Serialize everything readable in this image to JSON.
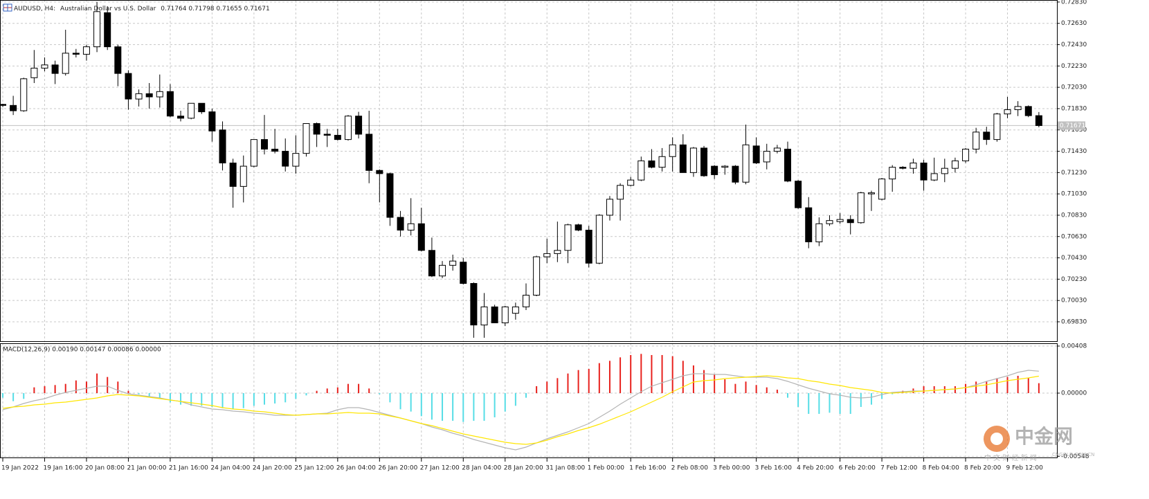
{
  "chart_data": [
    {
      "type": "candlestick",
      "title": "AUDUSD, H4:",
      "subtitle": "Australian Dollar vs U.S. Dollar",
      "categories": [
        "19 Jan 2022",
        null,
        null,
        null,
        "19 Jan 16:00",
        null,
        null,
        null,
        "20 Jan 08:00",
        null,
        null,
        null,
        "21 Jan 00:00",
        null,
        null,
        null,
        "21 Jan 16:00",
        null,
        null,
        null,
        "24 Jan 04:00",
        null,
        null,
        null,
        "24 Jan 20:00",
        null,
        null,
        null,
        "25 Jan 12:00",
        null,
        null,
        null,
        "26 Jan 04:00",
        null,
        null,
        null,
        "26 Jan 20:00",
        null,
        null,
        null,
        "27 Jan 12:00",
        null,
        null,
        null,
        "28 Jan 04:00",
        null,
        null,
        null,
        "28 Jan 20:00",
        null,
        null,
        null,
        "31 Jan 08:00",
        null,
        null,
        null,
        "1 Feb 00:00",
        null,
        null,
        null,
        "1 Feb 16:00",
        null,
        null,
        null,
        "2 Feb 08:00",
        null,
        null,
        null,
        "3 Feb 00:00",
        null,
        null,
        null,
        "3 Feb 16:00",
        null,
        null,
        null,
        "4 Feb 20:00",
        null,
        null,
        null,
        "6 Feb 20:00",
        null,
        null,
        null,
        "7 Feb 12:00",
        null,
        null,
        null,
        "8 Feb 04:00",
        null,
        null,
        null,
        "8 Feb 20:00",
        null,
        null,
        null,
        "9 Feb 12:00",
        null,
        null,
        null
      ],
      "open": [
        0.7187,
        0.7186,
        0.7181,
        0.7212,
        0.7221,
        0.7224,
        0.7216,
        0.7235,
        0.7234,
        0.7241,
        0.7273,
        0.7241,
        0.7216,
        0.7192,
        0.7197,
        0.7194,
        0.7199,
        0.7176,
        0.7174,
        0.7188,
        0.718,
        0.7163,
        0.7132,
        0.711,
        0.7129,
        0.7154,
        0.7145,
        0.7143,
        0.7129,
        0.7141,
        0.7169,
        0.7159,
        0.7158,
        0.7154,
        0.7176,
        0.7159,
        0.7125,
        0.7122,
        0.7081,
        0.7069,
        0.7075,
        0.705,
        0.7026,
        0.7036,
        0.7039,
        0.7019,
        0.698,
        0.6997,
        0.6982,
        0.6991,
        0.6997,
        0.7008,
        0.7044,
        0.7047,
        0.705,
        0.7074,
        0.7069,
        0.7038,
        0.7083,
        0.7098,
        0.7111,
        0.7116,
        0.7134,
        0.7128,
        0.7138,
        0.7149,
        0.7123,
        0.7146,
        0.7129,
        0.7128,
        0.7129,
        0.7114,
        0.7148,
        0.7133,
        0.7143,
        0.7145,
        0.7115,
        0.709,
        0.7058,
        0.7075,
        0.7077,
        0.7079,
        0.7076,
        0.7103,
        0.7098,
        0.7117,
        0.7128,
        0.7127,
        0.7132,
        0.7116,
        0.7122,
        0.7127,
        0.7134,
        0.7145,
        0.7161,
        0.7154,
        0.7178,
        0.7182,
        0.7185,
        0.71764
      ],
      "high": [
        0.71875,
        0.7195,
        0.7212,
        0.7238,
        0.7231,
        0.7228,
        0.7257,
        0.7239,
        0.7243,
        0.7283,
        0.7279,
        0.7243,
        0.7219,
        0.7201,
        0.7207,
        0.7215,
        0.7206,
        0.7181,
        0.7188,
        0.7188,
        0.7183,
        0.7171,
        0.7136,
        0.7139,
        0.7154,
        0.7177,
        0.7164,
        0.7155,
        0.7158,
        0.7169,
        0.717,
        0.7164,
        0.7164,
        0.7177,
        0.718,
        0.7181,
        0.7126,
        0.7123,
        0.7087,
        0.7099,
        0.709,
        0.7062,
        0.704,
        0.7046,
        0.7043,
        0.702,
        0.701,
        0.6999,
        0.6998,
        0.7001,
        0.7019,
        0.7045,
        0.7061,
        0.7077,
        0.7075,
        0.7075,
        0.7073,
        0.7084,
        0.7101,
        0.7113,
        0.7119,
        0.7138,
        0.7145,
        0.7146,
        0.7156,
        0.7159,
        0.7147,
        0.7148,
        0.713,
        0.713,
        0.713,
        0.7168,
        0.7156,
        0.715,
        0.7149,
        0.7152,
        0.7116,
        0.71,
        0.7081,
        0.7083,
        0.7085,
        0.7083,
        0.7105,
        0.7106,
        0.7118,
        0.713,
        0.7129,
        0.7136,
        0.7135,
        0.7137,
        0.7136,
        0.7137,
        0.7146,
        0.7165,
        0.7166,
        0.7179,
        0.7194,
        0.719,
        0.7186,
        0.71798
      ],
      "low": [
        0.71845,
        0.7177,
        0.718,
        0.7207,
        0.7218,
        0.7206,
        0.7214,
        0.7231,
        0.7228,
        0.7236,
        0.7238,
        0.7204,
        0.7182,
        0.7185,
        0.7183,
        0.7184,
        0.7175,
        0.7171,
        0.7173,
        0.7178,
        0.7152,
        0.7125,
        0.709,
        0.7095,
        0.7128,
        0.714,
        0.7141,
        0.7124,
        0.7122,
        0.7138,
        0.7147,
        0.7147,
        0.7153,
        0.7153,
        0.7155,
        0.7113,
        0.7095,
        0.7073,
        0.7063,
        0.7064,
        0.7049,
        0.7025,
        0.7024,
        0.7031,
        0.7018,
        0.6968,
        0.6968,
        0.6982,
        0.6979,
        0.6985,
        0.6994,
        0.7007,
        0.7038,
        0.7039,
        0.7038,
        0.7068,
        0.7034,
        0.7037,
        0.7078,
        0.7078,
        0.711,
        0.7115,
        0.7127,
        0.7124,
        0.7124,
        0.7123,
        0.7119,
        0.7119,
        0.7117,
        0.7121,
        0.7112,
        0.7112,
        0.7131,
        0.7126,
        0.7141,
        0.7114,
        0.7089,
        0.7052,
        0.7054,
        0.7073,
        0.7075,
        0.7065,
        0.7075,
        0.7087,
        0.7097,
        0.7105,
        0.7126,
        0.7122,
        0.7106,
        0.7115,
        0.7114,
        0.7123,
        0.7132,
        0.7141,
        0.7149,
        0.7152,
        0.7174,
        0.7176,
        0.7175,
        0.71655
      ],
      "close": [
        0.7186,
        0.7181,
        0.7211,
        0.7221,
        0.7224,
        0.7216,
        0.7235,
        0.7234,
        0.7241,
        0.7274,
        0.7241,
        0.7216,
        0.7192,
        0.7197,
        0.7194,
        0.7199,
        0.7176,
        0.7174,
        0.7188,
        0.718,
        0.7162,
        0.7132,
        0.711,
        0.7129,
        0.7154,
        0.7145,
        0.7143,
        0.7129,
        0.7141,
        0.7169,
        0.7159,
        0.7158,
        0.7154,
        0.7176,
        0.7159,
        0.7125,
        0.7122,
        0.7081,
        0.7069,
        0.7075,
        0.705,
        0.7026,
        0.7036,
        0.704,
        0.7019,
        0.698,
        0.6997,
        0.6982,
        0.6997,
        0.6997,
        0.7008,
        0.7044,
        0.7047,
        0.705,
        0.7074,
        0.7069,
        0.7038,
        0.7083,
        0.7098,
        0.7111,
        0.7116,
        0.7134,
        0.7128,
        0.7138,
        0.7149,
        0.7123,
        0.7146,
        0.712,
        0.7121,
        0.7129,
        0.7114,
        0.7149,
        0.7132,
        0.7143,
        0.7146,
        0.7115,
        0.709,
        0.7058,
        0.7075,
        0.7078,
        0.7079,
        0.7076,
        0.7104,
        0.7104,
        0.7117,
        0.7128,
        0.7127,
        0.7132,
        0.7116,
        0.7122,
        0.7127,
        0.7134,
        0.7145,
        0.7161,
        0.7154,
        0.7178,
        0.7182,
        0.7185,
        0.71764,
        0.71671
      ],
      "up_color": "#ffffff",
      "down_color": "#000000",
      "outline_color": "#000000",
      "ylim": [
        0.69648,
        0.72849
      ],
      "yticks": [
        {
          "value": 0.7283,
          "label": "0.72830"
        },
        {
          "value": 0.7263,
          "label": "0.72630"
        },
        {
          "value": 0.7243,
          "label": "0.72430"
        },
        {
          "value": 0.7223,
          "label": "0.72230"
        },
        {
          "value": 0.7203,
          "label": "0.72030"
        },
        {
          "value": 0.7183,
          "label": "0.71830"
        },
        {
          "value": 0.7163,
          "label": "0.71630"
        },
        {
          "value": 0.7143,
          "label": "0.71430"
        },
        {
          "value": 0.7123,
          "label": "0.71230"
        },
        {
          "value": 0.7103,
          "label": "0.71030"
        },
        {
          "value": 0.7083,
          "label": "0.70830"
        },
        {
          "value": 0.7063,
          "label": "0.70630"
        },
        {
          "value": 0.7043,
          "label": "0.70430"
        },
        {
          "value": 0.7023,
          "label": "0.70230"
        },
        {
          "value": 0.7003,
          "label": "0.70030"
        },
        {
          "value": 0.6983,
          "label": "0.69830"
        }
      ],
      "last_price": 0.71671,
      "grid": true
    },
    {
      "type": "macd",
      "title": "MACD(12,26,9) 0.00190 0.00147 0.00086 0.00000",
      "histogram": {
        "positive_color": "#e8201c",
        "negative_color": "#55dde6",
        "values": [
          -0.0004,
          -0.0007,
          -0.0005,
          0.0005,
          0.0006,
          0.0007,
          0.0008,
          0.0011,
          0.001,
          0.0017,
          0.0014,
          0.001,
          0.0002,
          -0.0001,
          -0.0003,
          -0.0005,
          -0.0008,
          -0.001,
          -0.0011,
          -0.0011,
          -0.0012,
          -0.0013,
          -0.0014,
          -0.0013,
          -0.0011,
          -0.001,
          -0.0009,
          -0.0008,
          -0.0005,
          -0.0002,
          0.0002,
          0.0004,
          0.0005,
          0.0008,
          0.0008,
          0.0004,
          -0.0001,
          -0.0008,
          -0.0014,
          -0.0016,
          -0.002,
          -0.0023,
          -0.0024,
          -0.0024,
          -0.0025,
          -0.0024,
          -0.0024,
          -0.0021,
          -0.0016,
          -0.0011,
          -0.0004,
          0.0006,
          0.001,
          0.0013,
          0.0017,
          0.002,
          0.0021,
          0.0026,
          0.0028,
          0.0031,
          0.0033,
          0.0034,
          0.0033,
          0.0033,
          0.0032,
          0.0028,
          0.0024,
          0.002,
          0.0016,
          0.0012,
          0.0008,
          0.001,
          0.0007,
          0.0005,
          0.0003,
          -0.0004,
          -0.0012,
          -0.0018,
          -0.0018,
          -0.0017,
          -0.0018,
          -0.0018,
          -0.0012,
          -0.001,
          -0.0005,
          -0.0001,
          0.0002,
          0.0004,
          0.0006,
          0.0006,
          0.0006,
          0.0006,
          0.0008,
          0.001,
          0.001,
          0.0013,
          0.0014,
          0.0015,
          0.0013,
          0.00086
        ]
      },
      "series": [
        {
          "color": "#b4b4b4",
          "values": [
            -0.00144,
            -0.0012,
            -0.0009,
            -0.00066,
            -0.00048,
            -0.00018,
            6e-05,
            0.00024,
            0.00042,
            0.0006,
            0.0006,
            0.00024,
            -6e-05,
            -0.00018,
            -0.0003,
            -0.00042,
            -0.0006,
            -0.00072,
            -0.00102,
            -0.0012,
            -0.00138,
            -0.00144,
            -0.00156,
            -0.00162,
            -0.00174,
            -0.0018,
            -0.00192,
            -0.00192,
            -0.00192,
            -0.00186,
            -0.0018,
            -0.00174,
            -0.00144,
            -0.00126,
            -0.00126,
            -0.00144,
            -0.00168,
            -0.00192,
            -0.00216,
            -0.0024,
            -0.00264,
            -0.00294,
            -0.00318,
            -0.00348,
            -0.00372,
            -0.00402,
            -0.00426,
            -0.0045,
            -0.00474,
            -0.00492,
            -0.00468,
            -0.00432,
            -0.00396,
            -0.00366,
            -0.00336,
            -0.003,
            -0.00264,
            -0.0021,
            -0.00156,
            -0.00096,
            -0.00042,
            0.00012,
            0.0006,
            0.0009,
            0.0012,
            0.0015,
            0.00168,
            0.00168,
            0.00162,
            0.00162,
            0.0015,
            0.00138,
            0.00138,
            0.00138,
            0.00126,
            0.00102,
            0.00072,
            0.00042,
            0.00018,
            -6e-05,
            -0.00018,
            -0.00036,
            -0.00042,
            -0.00036,
            -0.00012,
            6e-05,
            0.00012,
            0.00018,
            0.00018,
            0.00024,
            0.0003,
            0.00036,
            0.00048,
            0.00072,
            0.00102,
            0.00126,
            0.0015,
            0.0018,
            0.00198,
            0.0019
          ]
        },
        {
          "color": "#ffe600",
          "values": [
            -0.00132,
            -0.0012,
            -0.00114,
            -0.00102,
            -0.00096,
            -0.00084,
            -0.00078,
            -0.00066,
            -0.00054,
            -0.00042,
            -0.00024,
            -0.00012,
            -0.00018,
            -0.00024,
            -0.00036,
            -0.00048,
            -0.0006,
            -0.00072,
            -0.00084,
            -0.00096,
            -0.00108,
            -0.00126,
            -0.00138,
            -0.00144,
            -0.00156,
            -0.00162,
            -0.00174,
            -0.00186,
            -0.00192,
            -0.00186,
            -0.0018,
            -0.0018,
            -0.00174,
            -0.00168,
            -0.00174,
            -0.00174,
            -0.0018,
            -0.00198,
            -0.00216,
            -0.0024,
            -0.00264,
            -0.00282,
            -0.00306,
            -0.0033,
            -0.00354,
            -0.00372,
            -0.0039,
            -0.00408,
            -0.00426,
            -0.00438,
            -0.00444,
            -0.00432,
            -0.00408,
            -0.00378,
            -0.00354,
            -0.00324,
            -0.003,
            -0.0027,
            -0.00234,
            -0.00198,
            -0.00162,
            -0.0012,
            -0.00078,
            -0.00036,
            0.00012,
            0.00054,
            0.00096,
            0.00108,
            0.00114,
            0.00126,
            0.00132,
            0.00138,
            0.00144,
            0.0015,
            0.00144,
            0.00132,
            0.00126,
            0.00108,
            0.00096,
            0.00078,
            0.00066,
            0.00048,
            0.00036,
            0.00024,
            6e-05,
            0,
            6e-05,
            0.00012,
            0.00018,
            0.00024,
            0.0003,
            0.00036,
            0.00048,
            0.0006,
            0.00072,
            0.0009,
            0.00108,
            0.0012,
            0.00132,
            0.00147
          ]
        }
      ],
      "ylim": [
        -0.00558,
        0.00432
      ],
      "yticks": [
        {
          "value": 0.00408,
          "label": "0.00408"
        },
        {
          "value": 0,
          "label": "0.00000"
        },
        {
          "value": -0.00548,
          "label": "-0.00548"
        }
      ],
      "grid": true
    }
  ],
  "watermark": {
    "logo": "中金网",
    "site": "CNGOLD.COM.CN",
    "tagline": "中 文 财 经 新 闻"
  }
}
